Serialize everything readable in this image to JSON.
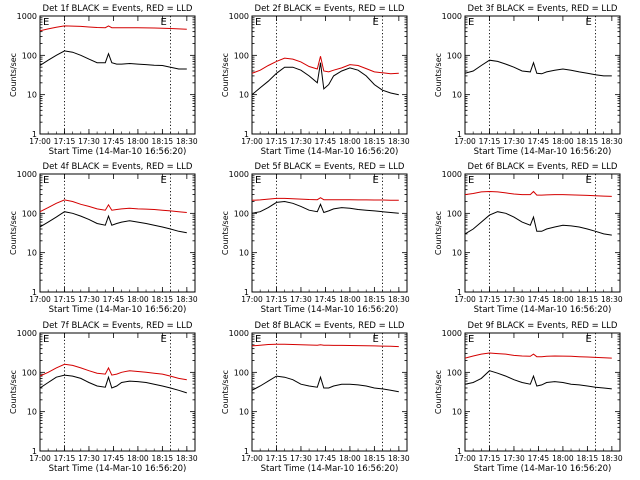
{
  "figure": {
    "xlabel": "Start Time (14-Mar-10 16:56:20)",
    "ylabel": "Counts/sec",
    "x_ticks": [
      "17:00",
      "17:15",
      "17:30",
      "17:45",
      "18:00",
      "18:15",
      "18:30"
    ],
    "y_ticks": [
      "1",
      "10",
      "100",
      "1000"
    ],
    "marker": "E",
    "colors": {
      "events": "#000000",
      "lld": "#d40000",
      "axes": "#000000",
      "background": "#ffffff"
    }
  },
  "chart_data": [
    {
      "type": "line",
      "title": "Det 1f BLACK = Events, RED = LLD",
      "xlim": [
        "17:00",
        "18:35"
      ],
      "ylim": [
        1,
        1000
      ],
      "yscale": "log",
      "grid": false,
      "x": [
        "17:00",
        "17:05",
        "17:10",
        "17:15",
        "17:20",
        "17:25",
        "17:30",
        "17:35",
        "17:40",
        "17:42",
        "17:44",
        "17:47",
        "17:50",
        "17:55",
        "18:00",
        "18:05",
        "18:10",
        "18:15",
        "18:20",
        "18:25",
        "18:30"
      ],
      "vlines": [
        "17:15",
        "18:20"
      ],
      "series": [
        {
          "name": "Events",
          "color": "#000000",
          "values": [
            55,
            75,
            100,
            130,
            120,
            100,
            80,
            65,
            65,
            110,
            65,
            60,
            60,
            62,
            60,
            58,
            56,
            55,
            50,
            45,
            45
          ]
        },
        {
          "name": "LLD",
          "color": "#d40000",
          "values": [
            420,
            470,
            520,
            560,
            555,
            545,
            525,
            510,
            505,
            560,
            505,
            505,
            505,
            505,
            500,
            498,
            495,
            490,
            480,
            470,
            460
          ]
        }
      ]
    },
    {
      "type": "line",
      "title": "Det 2f BLACK = Events, RED = LLD",
      "xlim": [
        "17:00",
        "18:35"
      ],
      "ylim": [
        1,
        1000
      ],
      "yscale": "log",
      "grid": false,
      "x": [
        "17:00",
        "17:05",
        "17:10",
        "17:15",
        "17:20",
        "17:25",
        "17:30",
        "17:35",
        "17:40",
        "17:42",
        "17:44",
        "17:47",
        "17:50",
        "17:55",
        "18:00",
        "18:05",
        "18:10",
        "18:15",
        "18:20",
        "18:25",
        "18:30"
      ],
      "vlines": [
        "17:15",
        "18:20"
      ],
      "series": [
        {
          "name": "Events",
          "color": "#000000",
          "values": [
            10,
            15,
            22,
            35,
            50,
            50,
            42,
            30,
            20,
            65,
            14,
            18,
            30,
            40,
            48,
            42,
            30,
            18,
            13,
            11,
            10
          ]
        },
        {
          "name": "LLD",
          "color": "#d40000",
          "values": [
            35,
            42,
            55,
            70,
            85,
            80,
            68,
            52,
            45,
            95,
            40,
            38,
            42,
            48,
            58,
            55,
            46,
            38,
            36,
            34,
            35
          ]
        }
      ]
    },
    {
      "type": "line",
      "title": "Det 3f BLACK = Events, RED = LLD",
      "xlim": [
        "17:00",
        "18:35"
      ],
      "ylim": [
        1,
        1000
      ],
      "yscale": "log",
      "grid": false,
      "x": [
        "17:00",
        "17:05",
        "17:10",
        "17:15",
        "17:20",
        "17:25",
        "17:30",
        "17:35",
        "17:40",
        "17:42",
        "17:44",
        "17:47",
        "17:50",
        "17:55",
        "18:00",
        "18:05",
        "18:10",
        "18:15",
        "18:20",
        "18:25",
        "18:30"
      ],
      "vlines": [
        "17:15",
        "18:20"
      ],
      "series": [
        {
          "name": "Events",
          "color": "#000000",
          "values": [
            35,
            40,
            55,
            75,
            70,
            60,
            50,
            40,
            38,
            65,
            35,
            34,
            38,
            42,
            45,
            42,
            38,
            35,
            32,
            30,
            30
          ]
        }
      ]
    },
    {
      "type": "line",
      "title": "Det 4f BLACK = Events, RED = LLD",
      "xlim": [
        "17:00",
        "18:35"
      ],
      "ylim": [
        1,
        1000
      ],
      "yscale": "log",
      "grid": false,
      "x": [
        "17:00",
        "17:05",
        "17:10",
        "17:15",
        "17:20",
        "17:25",
        "17:30",
        "17:35",
        "17:40",
        "17:42",
        "17:44",
        "17:47",
        "17:50",
        "17:55",
        "18:00",
        "18:05",
        "18:10",
        "18:15",
        "18:20",
        "18:25",
        "18:30"
      ],
      "vlines": [
        "17:15",
        "18:20"
      ],
      "series": [
        {
          "name": "Events",
          "color": "#000000",
          "values": [
            45,
            60,
            80,
            110,
            100,
            85,
            70,
            55,
            50,
            85,
            50,
            55,
            60,
            65,
            60,
            55,
            50,
            45,
            40,
            35,
            32
          ]
        },
        {
          "name": "LLD",
          "color": "#d40000",
          "values": [
            110,
            140,
            180,
            220,
            200,
            170,
            150,
            130,
            120,
            165,
            120,
            125,
            130,
            135,
            130,
            128,
            125,
            120,
            115,
            110,
            105
          ]
        }
      ]
    },
    {
      "type": "line",
      "title": "Det 5f BLACK = Events, RED = LLD",
      "xlim": [
        "17:00",
        "18:35"
      ],
      "ylim": [
        1,
        1000
      ],
      "yscale": "log",
      "grid": false,
      "x": [
        "17:00",
        "17:05",
        "17:10",
        "17:15",
        "17:20",
        "17:25",
        "17:30",
        "17:35",
        "17:40",
        "17:42",
        "17:44",
        "17:47",
        "17:50",
        "17:55",
        "18:00",
        "18:05",
        "18:10",
        "18:15",
        "18:20",
        "18:25",
        "18:30"
      ],
      "vlines": [
        "17:15",
        "18:20"
      ],
      "series": [
        {
          "name": "Events",
          "color": "#000000",
          "values": [
            100,
            110,
            140,
            190,
            200,
            180,
            150,
            120,
            110,
            170,
            105,
            115,
            130,
            140,
            135,
            125,
            120,
            115,
            110,
            105,
            100
          ]
        },
        {
          "name": "LLD",
          "color": "#d40000",
          "values": [
            215,
            220,
            230,
            240,
            240,
            235,
            230,
            225,
            222,
            250,
            222,
            222,
            222,
            222,
            222,
            220,
            220,
            218,
            218,
            216,
            215
          ]
        }
      ]
    },
    {
      "type": "line",
      "title": "Det 6f BLACK = Events, RED = LLD",
      "xlim": [
        "17:00",
        "18:35"
      ],
      "ylim": [
        1,
        1000
      ],
      "yscale": "log",
      "grid": false,
      "x": [
        "17:00",
        "17:05",
        "17:10",
        "17:15",
        "17:20",
        "17:25",
        "17:30",
        "17:35",
        "17:40",
        "17:42",
        "17:44",
        "17:47",
        "17:50",
        "17:55",
        "18:00",
        "18:05",
        "18:10",
        "18:15",
        "18:20",
        "18:25",
        "18:30"
      ],
      "vlines": [
        "17:15",
        "18:20"
      ],
      "series": [
        {
          "name": "Events",
          "color": "#000000",
          "values": [
            30,
            40,
            60,
            90,
            110,
            100,
            80,
            60,
            50,
            80,
            35,
            35,
            40,
            45,
            50,
            48,
            45,
            40,
            35,
            30,
            28
          ]
        },
        {
          "name": "LLD",
          "color": "#d40000",
          "values": [
            300,
            320,
            350,
            360,
            350,
            330,
            310,
            300,
            300,
            360,
            290,
            290,
            295,
            300,
            300,
            295,
            290,
            285,
            280,
            275,
            270
          ]
        }
      ]
    },
    {
      "type": "line",
      "title": "Det 7f BLACK = Events, RED = LLD",
      "xlim": [
        "17:00",
        "18:35"
      ],
      "ylim": [
        1,
        1000
      ],
      "yscale": "log",
      "grid": false,
      "x": [
        "17:00",
        "17:05",
        "17:10",
        "17:15",
        "17:20",
        "17:25",
        "17:30",
        "17:35",
        "17:40",
        "17:42",
        "17:44",
        "17:47",
        "17:50",
        "17:55",
        "18:00",
        "18:05",
        "18:10",
        "18:15",
        "18:20",
        "18:25",
        "18:30"
      ],
      "vlines": [
        "17:15",
        "18:20"
      ],
      "series": [
        {
          "name": "Events",
          "color": "#000000",
          "values": [
            40,
            55,
            75,
            85,
            80,
            70,
            55,
            45,
            42,
            75,
            40,
            45,
            55,
            60,
            58,
            55,
            50,
            45,
            40,
            35,
            30
          ]
        },
        {
          "name": "LLD",
          "color": "#d40000",
          "values": [
            80,
            100,
            130,
            160,
            150,
            130,
            110,
            95,
            90,
            130,
            85,
            90,
            100,
            110,
            105,
            100,
            95,
            90,
            80,
            70,
            65
          ]
        }
      ]
    },
    {
      "type": "line",
      "title": "Det 8f BLACK = Events, RED = LLD",
      "xlim": [
        "17:00",
        "18:35"
      ],
      "ylim": [
        1,
        1000
      ],
      "yscale": "log",
      "grid": false,
      "x": [
        "17:00",
        "17:05",
        "17:10",
        "17:15",
        "17:20",
        "17:25",
        "17:30",
        "17:35",
        "17:40",
        "17:42",
        "17:44",
        "17:47",
        "17:50",
        "17:55",
        "18:00",
        "18:05",
        "18:10",
        "18:15",
        "18:20",
        "18:25",
        "18:30"
      ],
      "vlines": [
        "17:15",
        "18:20"
      ],
      "series": [
        {
          "name": "Events",
          "color": "#000000",
          "values": [
            35,
            45,
            60,
            80,
            75,
            65,
            50,
            45,
            42,
            75,
            40,
            40,
            45,
            50,
            50,
            48,
            45,
            40,
            38,
            35,
            32
          ]
        },
        {
          "name": "LLD",
          "color": "#d40000",
          "values": [
            470,
            490,
            510,
            520,
            515,
            510,
            500,
            495,
            490,
            500,
            490,
            488,
            485,
            485,
            480,
            478,
            475,
            470,
            465,
            460,
            450
          ]
        }
      ]
    },
    {
      "type": "line",
      "title": "Det 9f BLACK = Events, RED = LLD",
      "xlim": [
        "17:00",
        "18:35"
      ],
      "ylim": [
        1,
        1000
      ],
      "yscale": "log",
      "grid": false,
      "x": [
        "17:00",
        "17:05",
        "17:10",
        "17:15",
        "17:20",
        "17:25",
        "17:30",
        "17:35",
        "17:40",
        "17:42",
        "17:44",
        "17:47",
        "17:50",
        "17:55",
        "18:00",
        "18:05",
        "18:10",
        "18:15",
        "18:20",
        "18:25",
        "18:30"
      ],
      "vlines": [
        "17:15",
        "18:20"
      ],
      "series": [
        {
          "name": "Events",
          "color": "#000000",
          "values": [
            50,
            55,
            70,
            110,
            95,
            80,
            65,
            55,
            50,
            80,
            45,
            48,
            55,
            58,
            55,
            50,
            48,
            45,
            42,
            40,
            38
          ]
        },
        {
          "name": "LLD",
          "color": "#d40000",
          "values": [
            230,
            260,
            290,
            310,
            300,
            290,
            270,
            260,
            255,
            290,
            250,
            250,
            255,
            260,
            258,
            255,
            250,
            245,
            240,
            235,
            230
          ]
        }
      ]
    }
  ]
}
